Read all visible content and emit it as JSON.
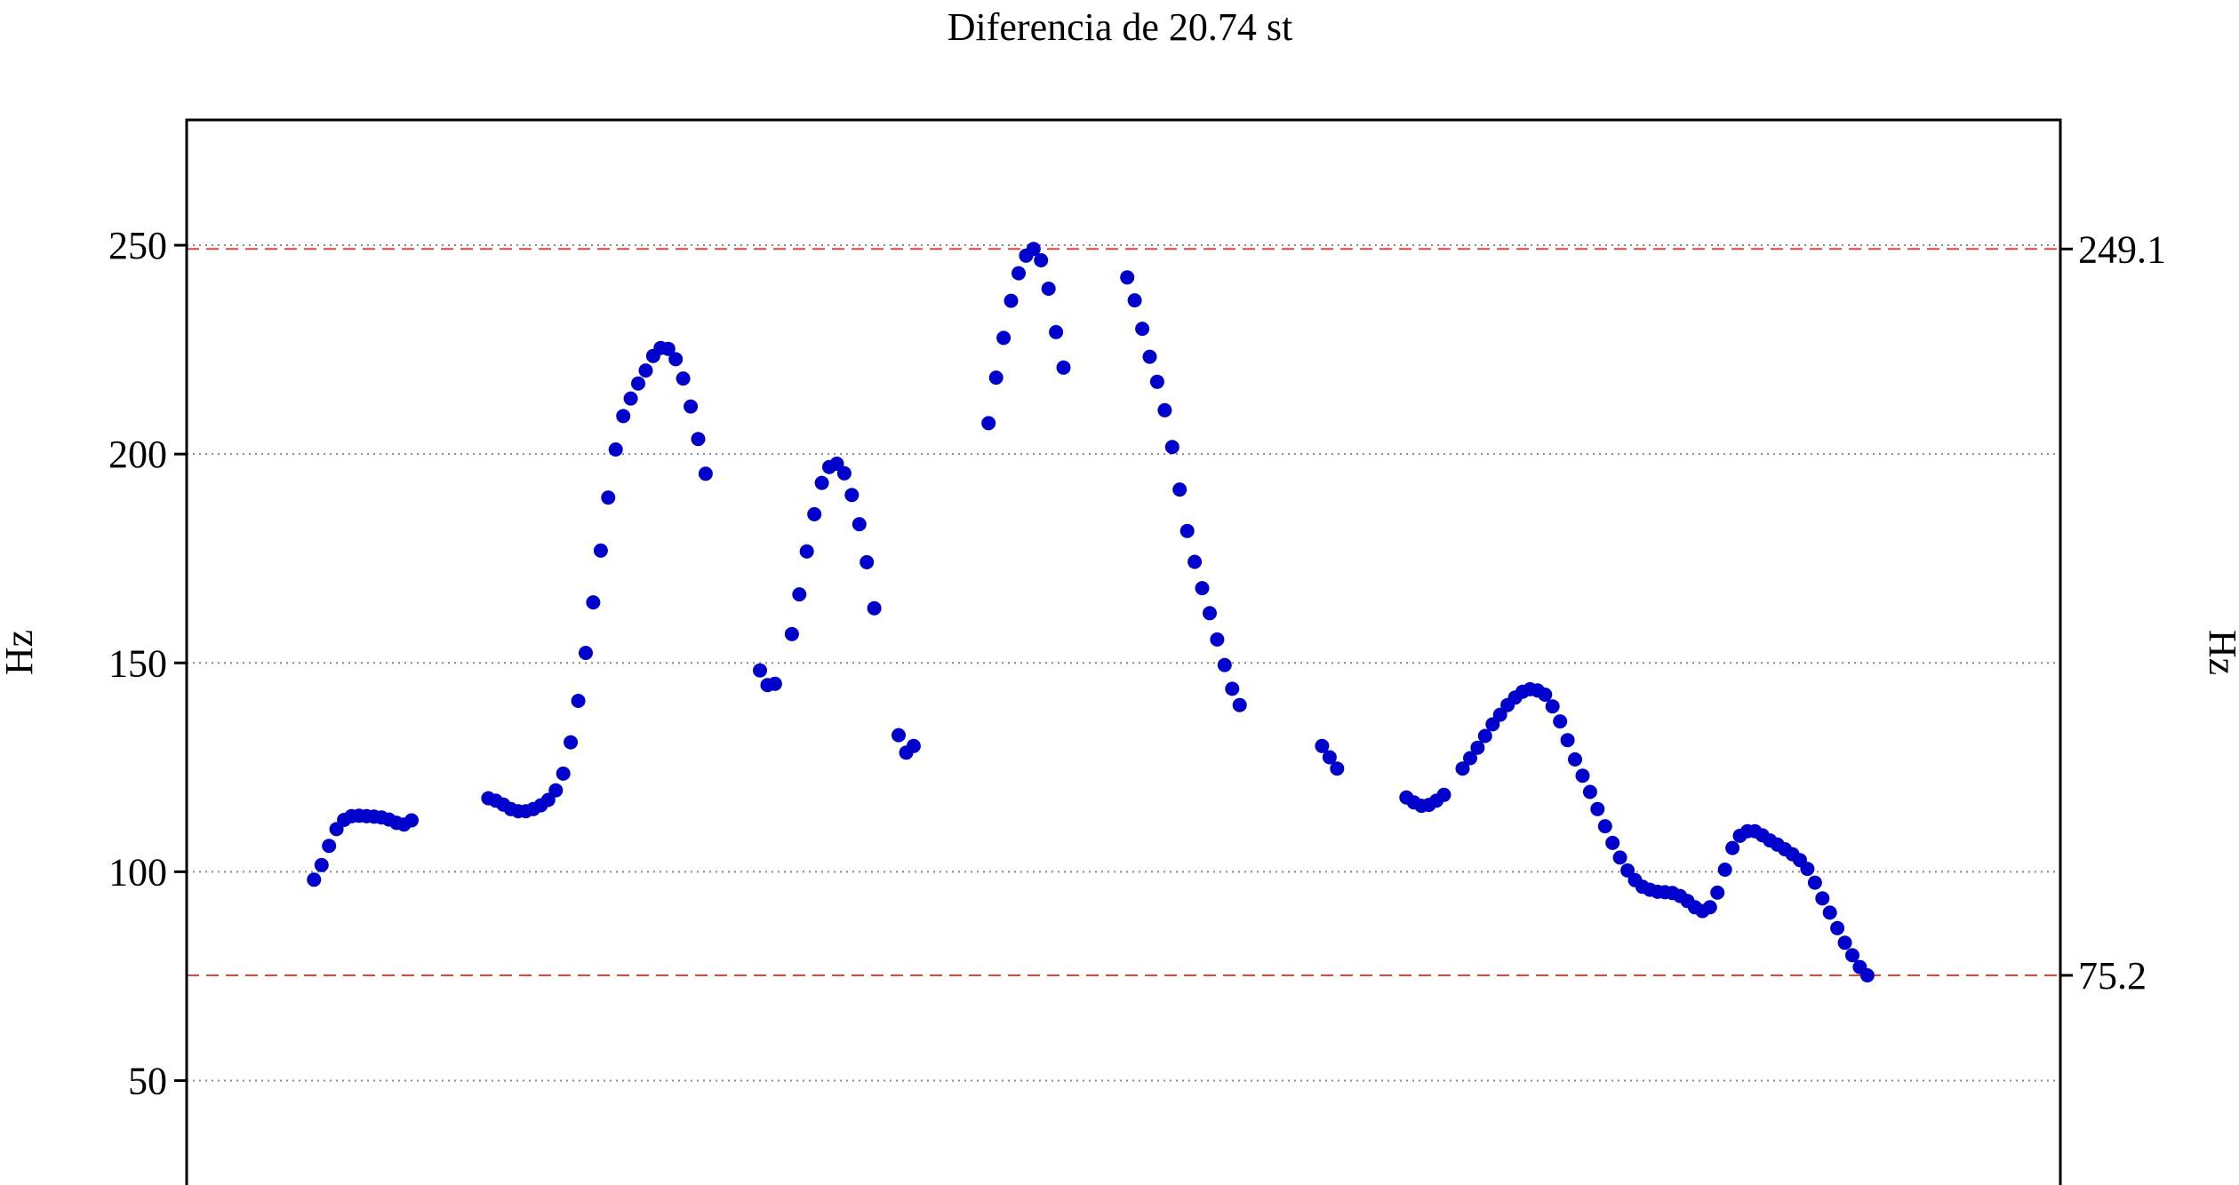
{
  "chart_data": {
    "type": "scatter",
    "title": "Diferencia de 20.74 st",
    "ylabel": "Hz",
    "ylabel_right": "Hz",
    "xlabel": "",
    "ylim": [
      25,
      280
    ],
    "xlim": [
      0,
      1
    ],
    "yticks": [
      {
        "value": 50,
        "label": "50"
      },
      {
        "value": 100,
        "label": "100"
      },
      {
        "value": 150,
        "label": "150"
      },
      {
        "value": 200,
        "label": "200"
      },
      {
        "value": 250,
        "label": "250"
      }
    ],
    "grid": "horizontal dotted at y ticks",
    "reference_lines": [
      {
        "value": 249.1,
        "label": "249.1",
        "style": "dashed",
        "color": "#e8403a"
      },
      {
        "value": 75.2,
        "label": "75.2",
        "style": "dashed",
        "color": "#e8403a"
      }
    ],
    "colors": {
      "points": "#0000cc",
      "reference": "#e8403a",
      "grid": "#888888"
    },
    "series": [
      {
        "points": [
          [
            0.068,
            98.1
          ],
          [
            0.072,
            101.6
          ],
          [
            0.076,
            106.2
          ],
          [
            0.08,
            110.2
          ],
          [
            0.084,
            112.4
          ],
          [
            0.088,
            113.3
          ],
          [
            0.092,
            113.4
          ],
          [
            0.096,
            113.3
          ],
          [
            0.1,
            113.2
          ],
          [
            0.104,
            113.0
          ],
          [
            0.108,
            112.5
          ],
          [
            0.112,
            111.7
          ],
          [
            0.116,
            111.3
          ],
          [
            0.12,
            112.3
          ],
          [
            0.161,
            117.6
          ],
          [
            0.165,
            117.0
          ],
          [
            0.169,
            116.1
          ],
          [
            0.173,
            115.0
          ],
          [
            0.177,
            114.5
          ],
          [
            0.181,
            114.5
          ],
          [
            0.185,
            115.0
          ],
          [
            0.189,
            115.9
          ],
          [
            0.193,
            117.2
          ],
          [
            0.197,
            119.5
          ],
          [
            0.201,
            123.5
          ],
          [
            0.205,
            131.0
          ],
          [
            0.209,
            140.9
          ],
          [
            0.213,
            152.4
          ],
          [
            0.217,
            164.5
          ],
          [
            0.221,
            176.9
          ],
          [
            0.225,
            189.6
          ],
          [
            0.229,
            201.1
          ],
          [
            0.233,
            209.1
          ],
          [
            0.237,
            213.3
          ],
          [
            0.241,
            216.9
          ],
          [
            0.245,
            220.0
          ],
          [
            0.249,
            223.5
          ],
          [
            0.253,
            225.4
          ],
          [
            0.257,
            225.2
          ],
          [
            0.261,
            222.7
          ],
          [
            0.265,
            218.1
          ],
          [
            0.269,
            211.4
          ],
          [
            0.273,
            203.6
          ],
          [
            0.277,
            195.3
          ],
          [
            0.306,
            148.2
          ],
          [
            0.31,
            144.7
          ],
          [
            0.314,
            145.0
          ],
          [
            0.323,
            156.9
          ],
          [
            0.327,
            166.4
          ],
          [
            0.331,
            176.7
          ],
          [
            0.335,
            185.6
          ],
          [
            0.339,
            193.1
          ],
          [
            0.343,
            196.9
          ],
          [
            0.347,
            197.7
          ],
          [
            0.351,
            195.4
          ],
          [
            0.355,
            190.2
          ],
          [
            0.359,
            183.2
          ],
          [
            0.363,
            174.1
          ],
          [
            0.367,
            163.1
          ],
          [
            0.38,
            132.7
          ],
          [
            0.384,
            128.5
          ],
          [
            0.388,
            130.1
          ],
          [
            0.428,
            207.4
          ],
          [
            0.432,
            218.3
          ],
          [
            0.436,
            227.8
          ],
          [
            0.44,
            236.7
          ],
          [
            0.444,
            243.3
          ],
          [
            0.448,
            247.5
          ],
          [
            0.452,
            249.1
          ],
          [
            0.456,
            246.4
          ],
          [
            0.46,
            239.6
          ],
          [
            0.464,
            229.2
          ],
          [
            0.468,
            220.7
          ],
          [
            0.502,
            242.3
          ],
          [
            0.506,
            236.8
          ],
          [
            0.51,
            230.0
          ],
          [
            0.514,
            223.3
          ],
          [
            0.518,
            217.3
          ],
          [
            0.522,
            210.5
          ],
          [
            0.526,
            201.7
          ],
          [
            0.53,
            191.5
          ],
          [
            0.534,
            181.6
          ],
          [
            0.538,
            174.2
          ],
          [
            0.542,
            167.9
          ],
          [
            0.546,
            161.9
          ],
          [
            0.55,
            155.6
          ],
          [
            0.554,
            149.5
          ],
          [
            0.558,
            143.8
          ],
          [
            0.562,
            139.9
          ],
          [
            0.606,
            130.1
          ],
          [
            0.61,
            127.4
          ],
          [
            0.614,
            124.7
          ],
          [
            0.651,
            117.8
          ],
          [
            0.655,
            116.6
          ],
          [
            0.659,
            115.8
          ],
          [
            0.663,
            116.0
          ],
          [
            0.667,
            117.0
          ],
          [
            0.671,
            118.4
          ],
          [
            0.681,
            124.7
          ],
          [
            0.685,
            127.2
          ],
          [
            0.689,
            129.7
          ],
          [
            0.693,
            132.5
          ],
          [
            0.697,
            135.3
          ],
          [
            0.701,
            137.6
          ],
          [
            0.705,
            139.9
          ],
          [
            0.709,
            141.7
          ],
          [
            0.713,
            143.1
          ],
          [
            0.717,
            143.7
          ],
          [
            0.721,
            143.4
          ],
          [
            0.725,
            142.4
          ],
          [
            0.729,
            139.6
          ],
          [
            0.733,
            136.0
          ],
          [
            0.737,
            131.5
          ],
          [
            0.741,
            126.9
          ],
          [
            0.745,
            123.0
          ],
          [
            0.749,
            119.1
          ],
          [
            0.753,
            115.0
          ],
          [
            0.757,
            110.9
          ],
          [
            0.761,
            106.9
          ],
          [
            0.765,
            103.4
          ],
          [
            0.769,
            100.3
          ],
          [
            0.773,
            98.0
          ],
          [
            0.777,
            96.4
          ],
          [
            0.781,
            95.7
          ],
          [
            0.785,
            95.2
          ],
          [
            0.789,
            95.1
          ],
          [
            0.793,
            94.9
          ],
          [
            0.797,
            94.2
          ],
          [
            0.801,
            93.0
          ],
          [
            0.805,
            91.5
          ],
          [
            0.809,
            90.6
          ],
          [
            0.813,
            91.5
          ],
          [
            0.817,
            95.0
          ],
          [
            0.821,
            100.5
          ],
          [
            0.825,
            105.7
          ],
          [
            0.829,
            108.6
          ],
          [
            0.833,
            109.7
          ],
          [
            0.837,
            109.7
          ],
          [
            0.841,
            108.7
          ],
          [
            0.845,
            107.5
          ],
          [
            0.849,
            106.5
          ],
          [
            0.853,
            105.4
          ],
          [
            0.857,
            104.2
          ],
          [
            0.861,
            102.8
          ],
          [
            0.865,
            100.7
          ],
          [
            0.869,
            97.4
          ],
          [
            0.873,
            93.6
          ],
          [
            0.877,
            90.2
          ],
          [
            0.881,
            86.5
          ],
          [
            0.885,
            83.0
          ],
          [
            0.889,
            80.0
          ],
          [
            0.893,
            77.2
          ],
          [
            0.897,
            75.2
          ]
        ]
      }
    ]
  }
}
